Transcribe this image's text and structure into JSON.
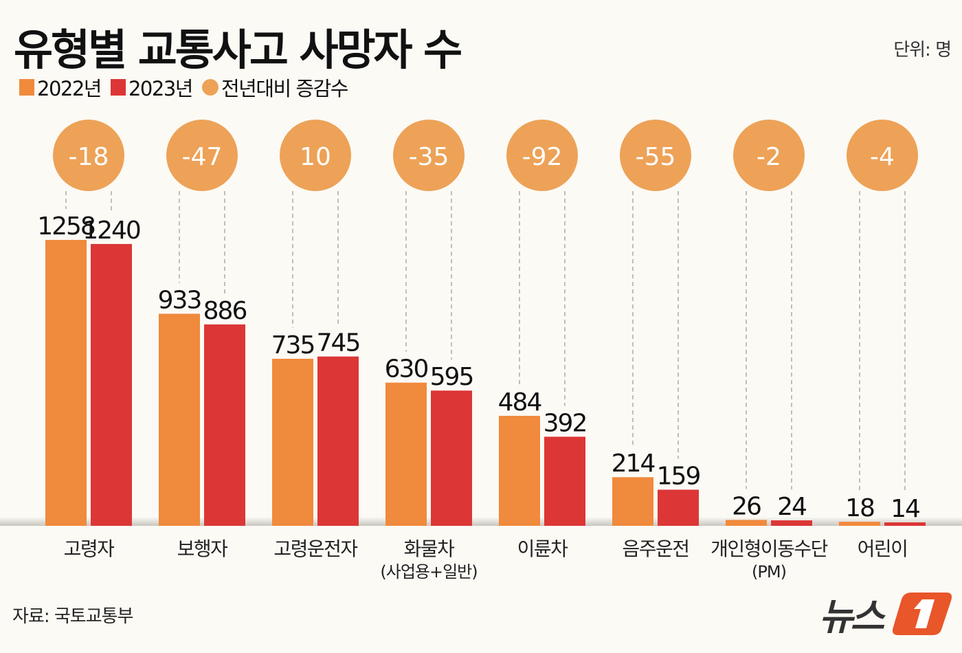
{
  "title": "유형별 교통사고 사망자 수",
  "unit": "단위: 명",
  "source": "자료: 국토교통부",
  "logo_text": "뉴스1",
  "colors": {
    "2022": "#f08a3c",
    "2023": "#dc3636",
    "change": "#eda257",
    "background": "#fcfaf5"
  },
  "chart_data": {
    "type": "bar",
    "title": "유형별 교통사고 사망자 수",
    "unit": "명",
    "legend": [
      "2022년",
      "2023년",
      "전년대비 증감수"
    ],
    "legend_placement": "top-left",
    "grid": false,
    "categories": [
      "고령자",
      "보행자",
      "고령운전자",
      "화물차",
      "이륜차",
      "음주운전",
      "개인형이동수단",
      "어린이"
    ],
    "category_sublabels": [
      "",
      "",
      "",
      "(사업용+일반)",
      "",
      "",
      "(PM)",
      ""
    ],
    "series": [
      {
        "name": "2022년",
        "values": [
          1258,
          933,
          735,
          630,
          484,
          214,
          26,
          18
        ]
      },
      {
        "name": "2023년",
        "values": [
          1240,
          886,
          745,
          595,
          392,
          159,
          24,
          14
        ]
      }
    ],
    "change": {
      "name": "전년대비 증감수",
      "values": [
        "-18",
        "-47",
        "10",
        "-35",
        "-92",
        "-55",
        "-2",
        "-4"
      ]
    }
  }
}
